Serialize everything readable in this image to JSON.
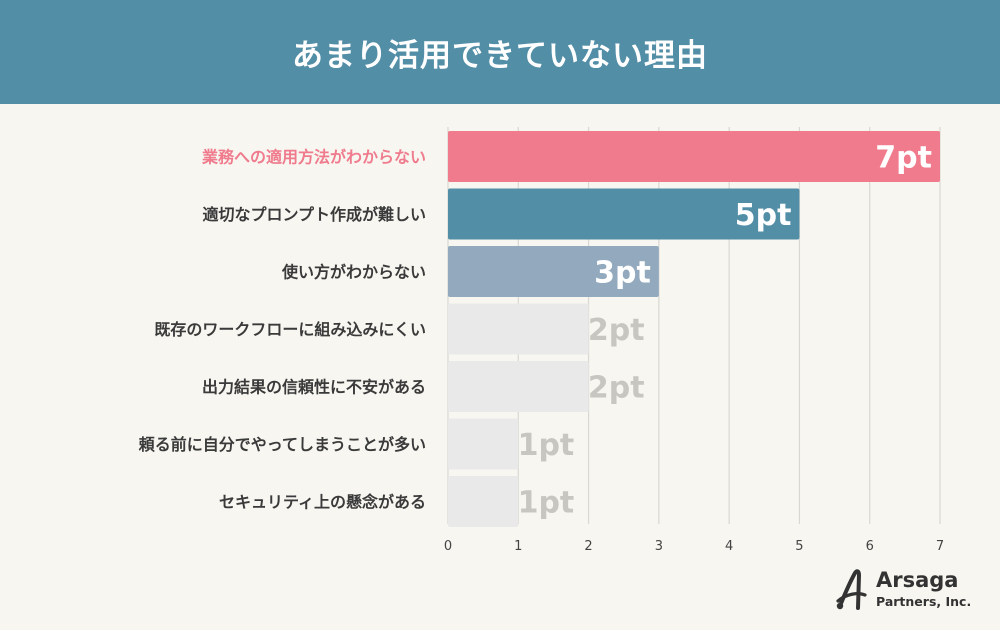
{
  "header": {
    "title": "あまり活用できていない理由"
  },
  "chart_data": {
    "type": "bar",
    "orientation": "horizontal",
    "categories": [
      "業務への適用方法がわからない",
      "適切なプロンプト作成が難しい",
      "使い方がわからない",
      "既存のワークフローに組み込みにくい",
      "出力結果の信頼性に不安がある",
      "頼る前に自分でやってしまうことが多い",
      "セキュリティ上の懸念がある"
    ],
    "values": [
      7,
      5,
      3,
      2,
      2,
      1,
      1
    ],
    "value_labels": [
      "7pt",
      "5pt",
      "3pt",
      "2pt",
      "2pt",
      "1pt",
      "1pt"
    ],
    "bar_colors": [
      "#ef7b8d",
      "#538ea7",
      "#93aabe",
      "#e9e9e9",
      "#e9e9e9",
      "#e9e9e9",
      "#e9e9e9"
    ],
    "highlight_label_color": "#ef7b8d",
    "xlim": [
      0,
      7
    ],
    "x_ticks": [
      "0",
      "1",
      "2",
      "3",
      "4",
      "5",
      "6",
      "7"
    ],
    "grid": true
  },
  "logo": {
    "name": "Arsaga",
    "sub": "Partners, Inc."
  }
}
